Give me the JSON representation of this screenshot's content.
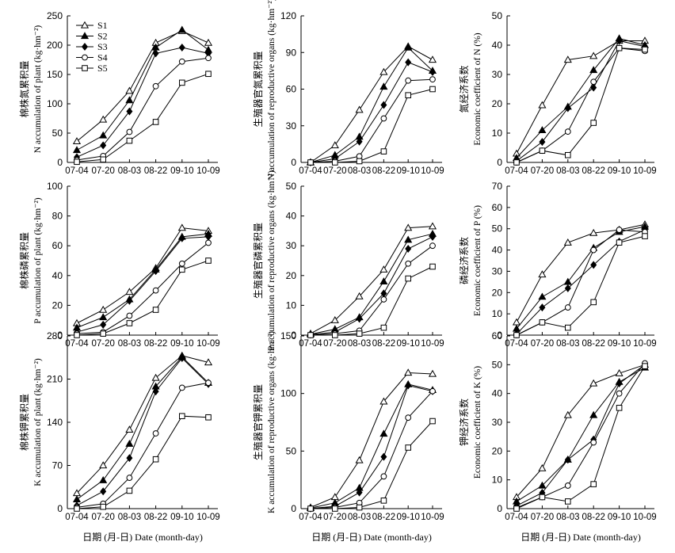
{
  "legend": {
    "entries": [
      "S1",
      "S2",
      "S3",
      "S4",
      "S5"
    ]
  },
  "series_markers": [
    "triangle-open",
    "triangle-filled",
    "diamond-filled",
    "circle-open",
    "square-open"
  ],
  "colors": {
    "line": "#000000",
    "background": "#ffffff"
  },
  "x_axis_title": "日期 (月-日) Date (month-day)",
  "chart_data": [
    {
      "id": "a",
      "type": "line",
      "ylabel_cn": "棉株氮累积量",
      "ylabel": "N accumulation of plant (kg·hm⁻²)",
      "categories": [
        "07-04",
        "07-20",
        "08-03",
        "08-22",
        "09-10",
        "10-09"
      ],
      "ylim": [
        0,
        250
      ],
      "yticks": [
        0,
        50,
        100,
        150,
        200,
        250
      ],
      "series": [
        {
          "name": "S1",
          "values": [
            36,
            73,
            122,
            204,
            224,
            204
          ]
        },
        {
          "name": "S2",
          "values": [
            21,
            46,
            106,
            196,
            226,
            192
          ]
        },
        {
          "name": "S3",
          "values": [
            9,
            29,
            87,
            186,
            196,
            186
          ]
        },
        {
          "name": "S4",
          "values": [
            4,
            11,
            52,
            130,
            172,
            178
          ]
        },
        {
          "name": "S5",
          "values": [
            1,
            5,
            37,
            69,
            136,
            151
          ]
        }
      ]
    },
    {
      "id": "b",
      "type": "line",
      "ylabel_cn": "生殖器官氮累积量",
      "ylabel": "N accumulation of reproductive organs (kg·hm⁻²)",
      "categories": [
        "07-04",
        "07-20",
        "08-03",
        "08-22",
        "09-10",
        "10-09"
      ],
      "ylim": [
        0,
        120
      ],
      "yticks": [
        0,
        30,
        60,
        90,
        120
      ],
      "series": [
        {
          "name": "S1",
          "values": [
            0,
            14,
            43,
            74,
            95,
            84
          ]
        },
        {
          "name": "S2",
          "values": [
            0,
            6,
            21,
            62,
            94,
            75
          ]
        },
        {
          "name": "S3",
          "values": [
            0,
            3,
            17,
            47,
            82,
            74
          ]
        },
        {
          "name": "S4",
          "values": [
            0,
            1,
            5,
            36,
            67,
            68
          ]
        },
        {
          "name": "S5",
          "values": [
            0,
            0,
            1,
            9,
            55,
            60
          ]
        }
      ]
    },
    {
      "id": "c",
      "type": "line",
      "ylabel_cn": "氮经济系数",
      "ylabel": "Economic coefficient of N (%)",
      "categories": [
        "07-04",
        "07-20",
        "08-03",
        "08-22",
        "09-10",
        "10-09"
      ],
      "ylim": [
        0,
        50
      ],
      "yticks": [
        0,
        10,
        20,
        30,
        40,
        50
      ],
      "series": [
        {
          "name": "S1",
          "values": [
            3,
            19.5,
            35,
            36.3,
            41.5,
            41.5
          ]
        },
        {
          "name": "S2",
          "values": [
            1.5,
            11,
            19,
            31.5,
            42.3,
            40
          ]
        },
        {
          "name": "S3",
          "values": [
            0.5,
            7,
            18.5,
            25.5,
            41.5,
            39.5
          ]
        },
        {
          "name": "S4",
          "values": [
            0,
            4,
            10.5,
            27.5,
            39,
            38
          ]
        },
        {
          "name": "S5",
          "values": [
            0,
            4,
            2.5,
            13.5,
            39,
            38.5
          ]
        }
      ]
    },
    {
      "id": "d",
      "type": "line",
      "ylabel_cn": "棉株磷累积量",
      "ylabel": "P accumulation of plant (kg·hm⁻²)",
      "categories": [
        "07-04",
        "07-20",
        "08-03",
        "08-22",
        "09-10",
        "10-09"
      ],
      "ylim": [
        0,
        100
      ],
      "yticks": [
        0,
        20,
        40,
        60,
        80,
        100
      ],
      "series": [
        {
          "name": "S1",
          "values": [
            8,
            17,
            29,
            45,
            72,
            70
          ]
        },
        {
          "name": "S2",
          "values": [
            5,
            12,
            24,
            44,
            66,
            68
          ]
        },
        {
          "name": "S3",
          "values": [
            2,
            7,
            23,
            43,
            65,
            66
          ]
        },
        {
          "name": "S4",
          "values": [
            1,
            2,
            13,
            30,
            48,
            62
          ]
        },
        {
          "name": "S5",
          "values": [
            0,
            1,
            8,
            17,
            44,
            50
          ]
        }
      ]
    },
    {
      "id": "e",
      "type": "line",
      "ylabel_cn": "生殖器官磷累积量",
      "ylabel": "P accumulation of reproductive organs (kg·hm⁻²)",
      "categories": [
        "07-04",
        "07-20",
        "08-03",
        "08-22",
        "09-10",
        "10-09"
      ],
      "ylim": [
        0,
        50
      ],
      "yticks": [
        0,
        10,
        20,
        30,
        40,
        50
      ],
      "series": [
        {
          "name": "S1",
          "values": [
            0.5,
            5,
            13,
            22,
            36,
            36.5
          ]
        },
        {
          "name": "S2",
          "values": [
            0.3,
            2,
            6,
            18,
            32,
            34
          ]
        },
        {
          "name": "S3",
          "values": [
            0.2,
            1,
            5.5,
            14,
            29,
            33
          ]
        },
        {
          "name": "S4",
          "values": [
            0,
            0.5,
            1.5,
            12,
            24,
            30
          ]
        },
        {
          "name": "S5",
          "values": [
            0,
            0,
            0.5,
            2.5,
            19,
            23
          ]
        }
      ]
    },
    {
      "id": "f",
      "type": "line",
      "ylabel_cn": "磷经济系数",
      "ylabel": "Economic coefficient of P (%)",
      "categories": [
        "07-04",
        "07-20",
        "08-03",
        "08-22",
        "09-10",
        "10-09"
      ],
      "ylim": [
        0,
        70
      ],
      "yticks": [
        0,
        10,
        20,
        30,
        40,
        50,
        60,
        70
      ],
      "series": [
        {
          "name": "S1",
          "values": [
            6,
            28.5,
            43.5,
            48,
            49.5,
            52
          ]
        },
        {
          "name": "S2",
          "values": [
            3,
            18,
            25,
            41,
            48.5,
            51
          ]
        },
        {
          "name": "S3",
          "values": [
            0.5,
            13,
            22,
            33,
            44,
            49.5
          ]
        },
        {
          "name": "S4",
          "values": [
            0,
            6,
            13,
            40,
            49.5,
            48.5
          ]
        },
        {
          "name": "S5",
          "values": [
            0,
            6,
            3.5,
            15.5,
            43.5,
            46.5
          ]
        }
      ]
    },
    {
      "id": "g",
      "type": "line",
      "ylabel_cn": "棉株钾累积量",
      "ylabel": "K accumulation of plant (kg·hm⁻²)",
      "categories": [
        "07-04",
        "07-20",
        "08-03",
        "08-22",
        "09-10",
        "10-09"
      ],
      "ylim": [
        0,
        280
      ],
      "yticks": [
        0,
        70,
        140,
        210,
        280
      ],
      "series": [
        {
          "name": "S1",
          "values": [
            25,
            70,
            128,
            212,
            248,
            237
          ]
        },
        {
          "name": "S2",
          "values": [
            15,
            46,
            105,
            198,
            246,
            204
          ]
        },
        {
          "name": "S3",
          "values": [
            5,
            28,
            82,
            190,
            244,
            202
          ]
        },
        {
          "name": "S4",
          "values": [
            2,
            8,
            50,
            122,
            196,
            204
          ]
        },
        {
          "name": "S5",
          "values": [
            0,
            3,
            29,
            80,
            150,
            148
          ]
        }
      ]
    },
    {
      "id": "h",
      "type": "line",
      "ylabel_cn": "生殖器官钾累积量",
      "ylabel": "K accumulation of reproductive organs (kg·hm⁻²)",
      "categories": [
        "07-04",
        "07-20",
        "08-03",
        "08-22",
        "09-10",
        "10-09"
      ],
      "ylim": [
        0,
        150
      ],
      "yticks": [
        0,
        50,
        100,
        150
      ],
      "series": [
        {
          "name": "S1",
          "values": [
            1,
            10,
            42,
            93,
            118,
            117
          ]
        },
        {
          "name": "S2",
          "values": [
            0.5,
            5,
            18,
            65,
            108,
            103
          ]
        },
        {
          "name": "S3",
          "values": [
            0.2,
            2,
            14,
            45,
            107,
            102
          ]
        },
        {
          "name": "S4",
          "values": [
            0,
            1,
            5,
            28,
            79,
            102
          ]
        },
        {
          "name": "S5",
          "values": [
            0,
            0,
            1,
            7,
            53,
            76
          ]
        }
      ]
    },
    {
      "id": "i",
      "type": "line",
      "ylabel_cn": "钾经济系数",
      "ylabel": "Economic coefficient of K (%)",
      "categories": [
        "07-04",
        "07-20",
        "08-03",
        "08-22",
        "09-10",
        "10-09"
      ],
      "ylim": [
        0,
        60
      ],
      "yticks": [
        0,
        10,
        20,
        30,
        40,
        50,
        60
      ],
      "series": [
        {
          "name": "S1",
          "values": [
            4,
            14,
            32.5,
            43.5,
            47,
            50
          ]
        },
        {
          "name": "S2",
          "values": [
            2.5,
            8,
            17,
            32.5,
            44,
            49
          ]
        },
        {
          "name": "S3",
          "values": [
            1,
            5.5,
            17,
            24,
            43.5,
            50
          ]
        },
        {
          "name": "S4",
          "values": [
            0.3,
            4,
            8,
            23,
            40,
            50.5
          ]
        },
        {
          "name": "S5",
          "values": [
            0,
            4,
            2.5,
            8.5,
            35,
            49.5
          ]
        }
      ]
    }
  ]
}
